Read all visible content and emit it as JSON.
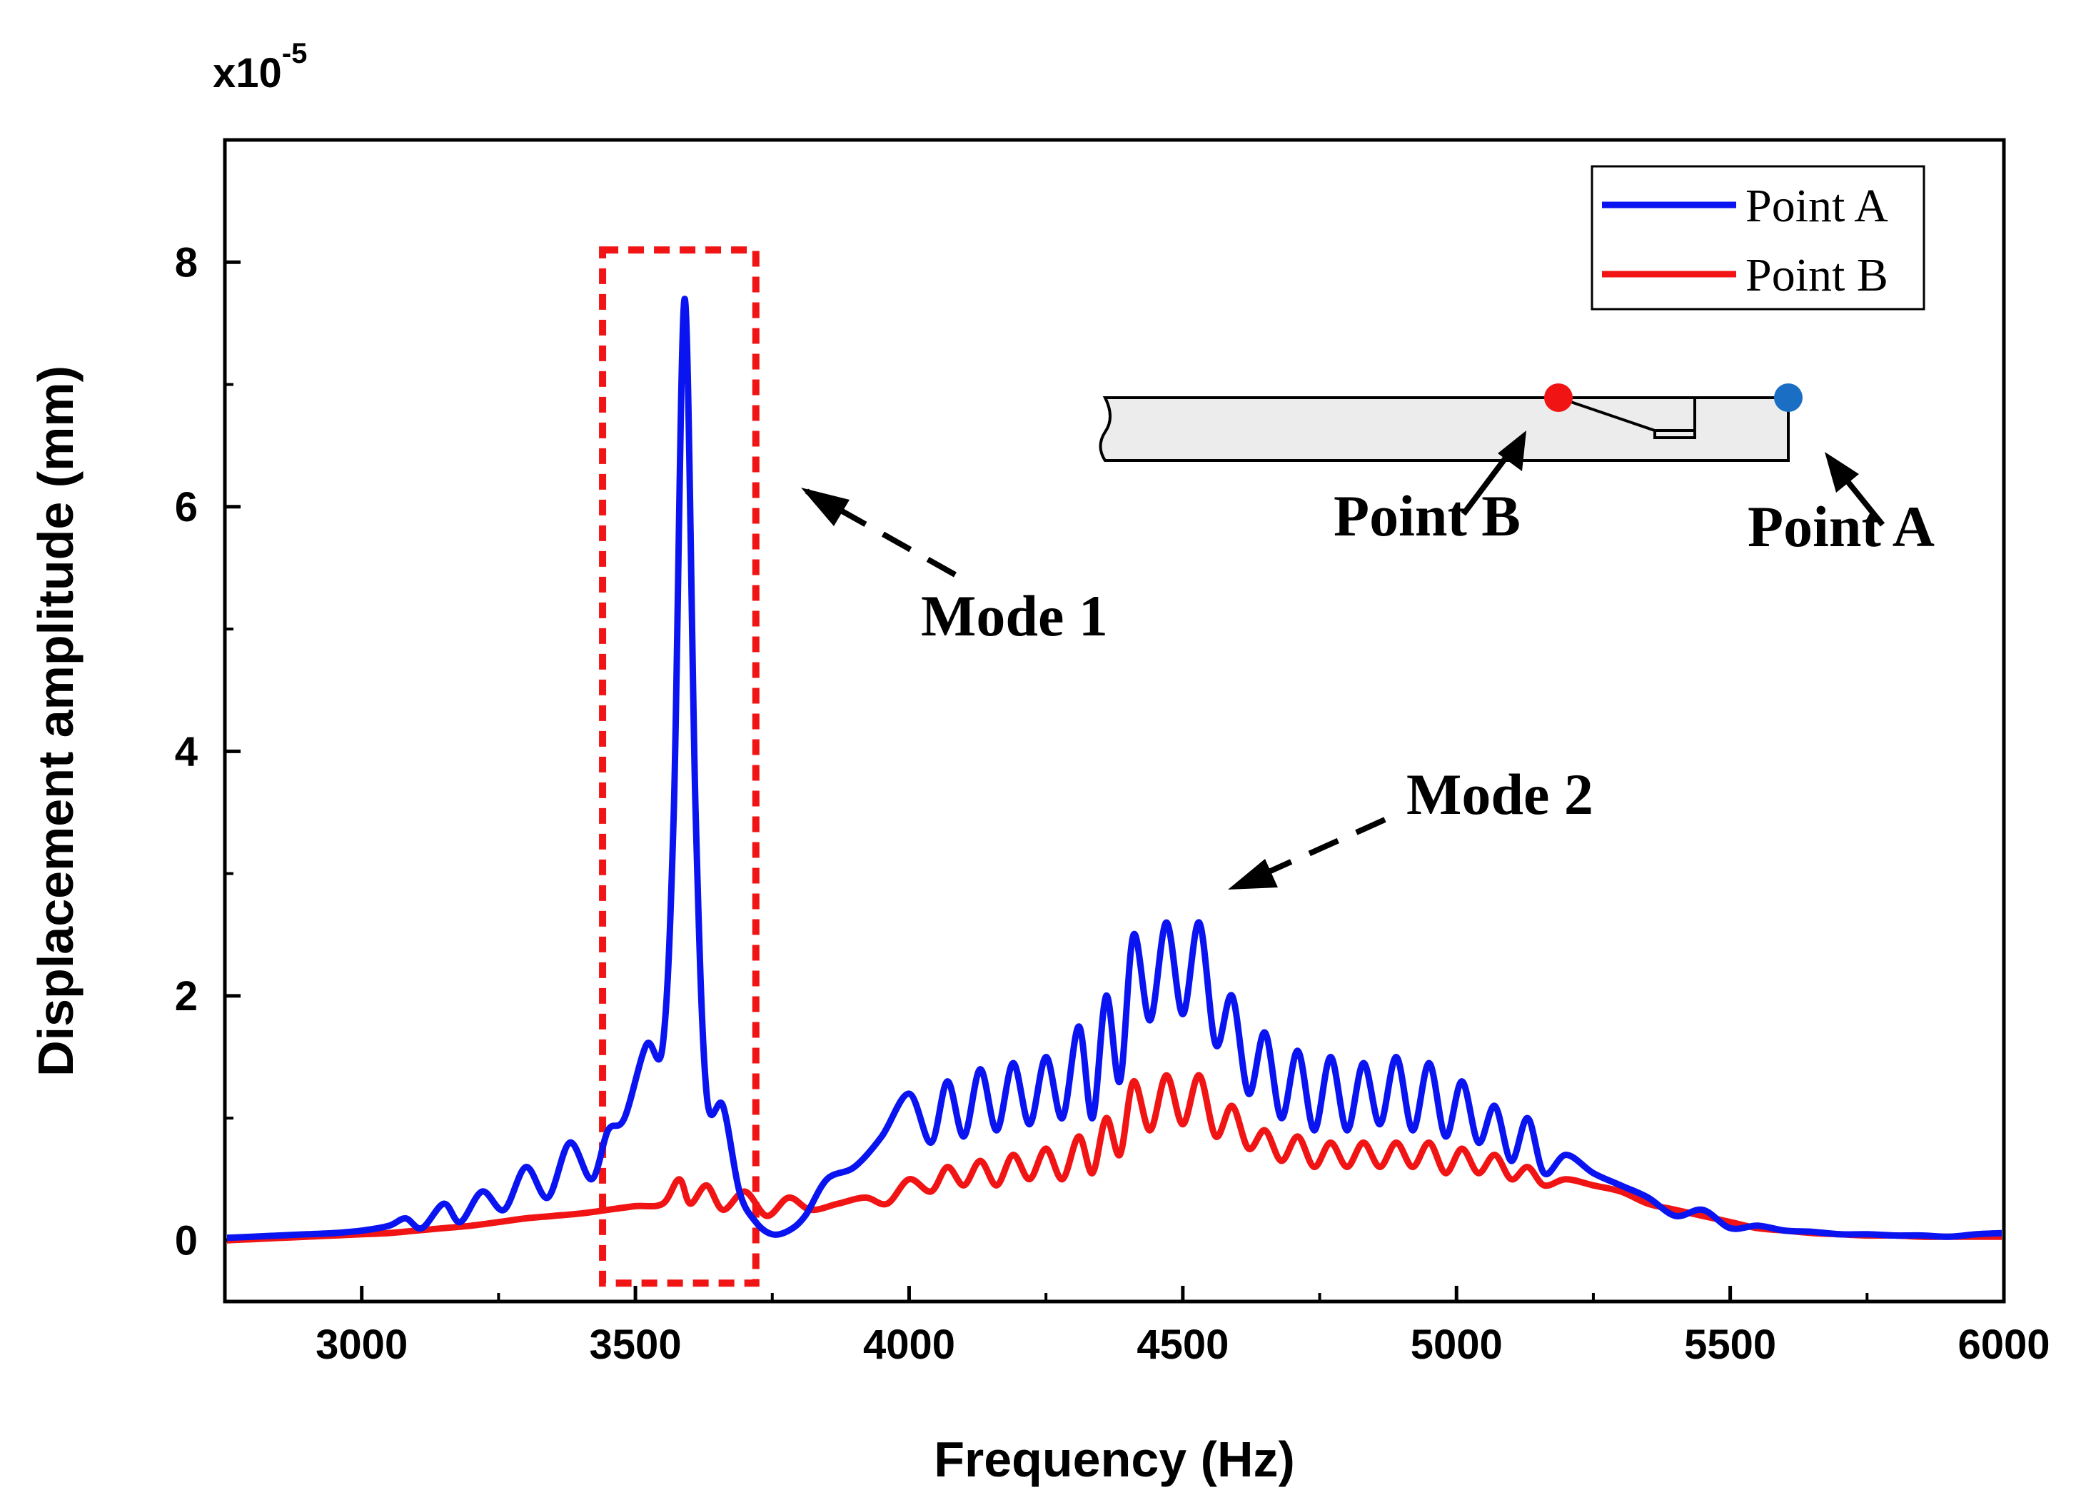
{
  "chart_data": {
    "type": "line",
    "title": "",
    "xlabel": "Frequency (Hz)",
    "ylabel": "Displacement amplitude (mm)",
    "y_multiplier_base": "x10",
    "y_multiplier_exp": "-5",
    "xlim": [
      2750,
      6000
    ],
    "ylim": [
      -0.5,
      9.0
    ],
    "xticks": [
      3000,
      3500,
      4000,
      4500,
      5000,
      5500,
      6000
    ],
    "yticks": [
      0,
      2,
      4,
      6,
      8
    ],
    "grid": false,
    "legend_position": "top-right",
    "series": [
      {
        "name": "Point A",
        "color": "#0a14f0",
        "x": [
          2750,
          2800,
          2850,
          2900,
          2950,
          3000,
          3050,
          3080,
          3110,
          3150,
          3180,
          3220,
          3260,
          3300,
          3340,
          3380,
          3420,
          3450,
          3480,
          3520,
          3550,
          3570,
          3590,
          3610,
          3630,
          3660,
          3690,
          3720,
          3750,
          3780,
          3810,
          3850,
          3900,
          3950,
          4000,
          4040,
          4070,
          4100,
          4130,
          4160,
          4190,
          4220,
          4250,
          4280,
          4310,
          4335,
          4360,
          4385,
          4410,
          4440,
          4470,
          4500,
          4530,
          4560,
          4590,
          4620,
          4650,
          4680,
          4710,
          4740,
          4770,
          4800,
          4830,
          4860,
          4890,
          4920,
          4950,
          4980,
          5010,
          5040,
          5070,
          5100,
          5130,
          5160,
          5200,
          5250,
          5300,
          5350,
          5400,
          5450,
          5500,
          5550,
          5600,
          5650,
          5700,
          5750,
          5800,
          5850,
          5900,
          5950,
          6000
        ],
        "y": [
          0.02,
          0.03,
          0.04,
          0.05,
          0.06,
          0.08,
          0.12,
          0.18,
          0.1,
          0.3,
          0.15,
          0.4,
          0.25,
          0.6,
          0.35,
          0.8,
          0.5,
          0.9,
          1.0,
          1.6,
          1.6,
          3.5,
          7.7,
          3.5,
          1.2,
          1.1,
          0.4,
          0.15,
          0.05,
          0.08,
          0.2,
          0.5,
          0.6,
          0.85,
          1.2,
          0.8,
          1.3,
          0.85,
          1.4,
          0.9,
          1.45,
          0.95,
          1.5,
          1.0,
          1.75,
          1.0,
          2.0,
          1.3,
          2.5,
          1.8,
          2.6,
          1.85,
          2.6,
          1.6,
          2.0,
          1.2,
          1.7,
          1.0,
          1.55,
          0.9,
          1.5,
          0.9,
          1.45,
          0.95,
          1.5,
          0.9,
          1.45,
          0.85,
          1.3,
          0.8,
          1.1,
          0.65,
          1.0,
          0.55,
          0.7,
          0.55,
          0.45,
          0.35,
          0.2,
          0.25,
          0.1,
          0.12,
          0.08,
          0.07,
          0.05,
          0.05,
          0.04,
          0.04,
          0.03,
          0.05,
          0.06
        ]
      },
      {
        "name": "Point B",
        "color": "#f01414",
        "x": [
          2750,
          2800,
          2850,
          2900,
          2950,
          3000,
          3050,
          3100,
          3150,
          3200,
          3250,
          3300,
          3350,
          3400,
          3450,
          3500,
          3550,
          3580,
          3600,
          3630,
          3660,
          3700,
          3740,
          3780,
          3820,
          3870,
          3920,
          3960,
          4000,
          4040,
          4070,
          4100,
          4130,
          4160,
          4190,
          4220,
          4250,
          4280,
          4310,
          4335,
          4360,
          4385,
          4410,
          4440,
          4470,
          4500,
          4530,
          4560,
          4590,
          4620,
          4650,
          4680,
          4710,
          4740,
          4770,
          4800,
          4830,
          4860,
          4890,
          4920,
          4950,
          4980,
          5010,
          5040,
          5070,
          5100,
          5130,
          5160,
          5200,
          5250,
          5300,
          5350,
          5400,
          5450,
          5500,
          5550,
          5600,
          5650,
          5700,
          5750,
          5800,
          5850,
          5900,
          5950,
          6000
        ],
        "y": [
          0.0,
          0.01,
          0.02,
          0.03,
          0.04,
          0.05,
          0.06,
          0.08,
          0.1,
          0.12,
          0.15,
          0.18,
          0.2,
          0.22,
          0.25,
          0.28,
          0.3,
          0.5,
          0.3,
          0.45,
          0.25,
          0.4,
          0.2,
          0.35,
          0.25,
          0.3,
          0.35,
          0.3,
          0.5,
          0.4,
          0.6,
          0.45,
          0.65,
          0.45,
          0.7,
          0.5,
          0.75,
          0.5,
          0.85,
          0.55,
          1.0,
          0.7,
          1.3,
          0.9,
          1.35,
          0.95,
          1.35,
          0.85,
          1.1,
          0.75,
          0.9,
          0.65,
          0.85,
          0.6,
          0.8,
          0.6,
          0.8,
          0.6,
          0.8,
          0.6,
          0.8,
          0.55,
          0.75,
          0.55,
          0.7,
          0.5,
          0.6,
          0.45,
          0.5,
          0.45,
          0.4,
          0.3,
          0.25,
          0.2,
          0.15,
          0.1,
          0.08,
          0.06,
          0.05,
          0.04,
          0.04,
          0.03,
          0.03,
          0.03,
          0.03
        ]
      }
    ],
    "annotations": {
      "mode1": "Mode 1",
      "mode2": "Mode 2",
      "point_a": "Point A",
      "point_b": "Point B"
    },
    "highlight_box_x": [
      3440,
      3720
    ],
    "highlight_box_y": [
      -0.35,
      8.1
    ],
    "colors": {
      "box": "#f01414",
      "marker_a": "#1a6fc4",
      "marker_b": "#f01414",
      "beam_fill": "#ececec"
    }
  }
}
